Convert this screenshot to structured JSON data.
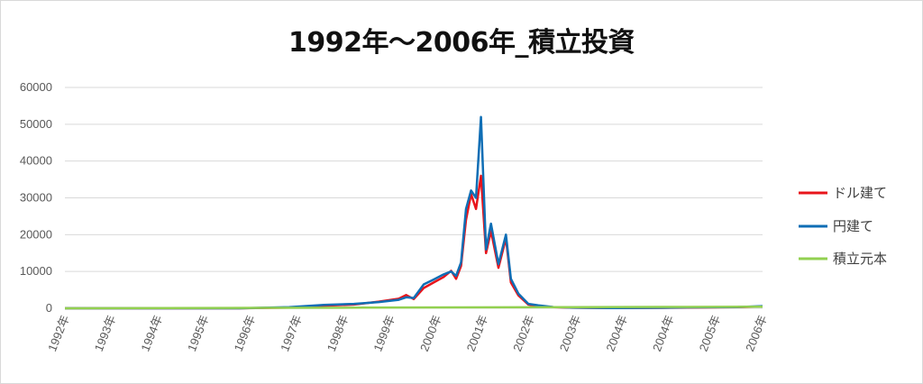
{
  "chart_data": {
    "type": "line",
    "title": "1992年～2006年_積立投資",
    "xlabel": "",
    "ylabel": "",
    "ylim": [
      0,
      60000
    ],
    "y_ticks": [
      "0",
      "10000",
      "20000",
      "30000",
      "40000",
      "50000",
      "60000"
    ],
    "x_ticks": [
      "1992年",
      "1993年",
      "1994年",
      "1995年",
      "1996年",
      "1997年",
      "1998年",
      "1999年",
      "2000年",
      "2001年",
      "2002年",
      "2003年",
      "2004年",
      "2004年",
      "2005年",
      "2006年"
    ],
    "grid": true,
    "legend_position": "right",
    "series": [
      {
        "name": "ドル建て",
        "color": "#e8141b",
        "x": [
          1992.0,
          1995.5,
          1996.5,
          1997.2,
          1997.8,
          1998.3,
          1998.7,
          1998.85,
          1999.0,
          1999.2,
          1999.4,
          1999.6,
          1999.75,
          1999.85,
          1999.95,
          2000.05,
          2000.15,
          2000.25,
          2000.35,
          2000.45,
          2000.55,
          2000.7,
          2000.85,
          2000.95,
          2001.1,
          2001.3,
          2001.5,
          2001.8,
          2002.2,
          2003.0,
          2004.0,
          2004.5,
          2005.5,
          2006.0
        ],
        "values": [
          0,
          0,
          200,
          700,
          1000,
          1800,
          2600,
          3600,
          2500,
          5500,
          7000,
          8500,
          10200,
          8000,
          11500,
          24000,
          31000,
          27000,
          36000,
          15000,
          21000,
          11000,
          19000,
          7000,
          3500,
          1000,
          600,
          300,
          150,
          50,
          120,
          200,
          300,
          500
        ]
      },
      {
        "name": "円建て",
        "color": "#0f6eb5",
        "x": [
          1992.0,
          1995.5,
          1996.5,
          1997.2,
          1997.8,
          1998.3,
          1998.7,
          1998.85,
          1999.0,
          1999.2,
          1999.4,
          1999.6,
          1999.75,
          1999.85,
          1999.95,
          2000.05,
          2000.15,
          2000.25,
          2000.35,
          2000.45,
          2000.55,
          2000.7,
          2000.85,
          2000.95,
          2001.1,
          2001.3,
          2001.5,
          2001.8,
          2002.2,
          2003.0,
          2004.0,
          2004.5,
          2005.5,
          2006.0
        ],
        "values": [
          0,
          0,
          300,
          900,
          1200,
          1700,
          2300,
          3000,
          2800,
          6500,
          7800,
          9200,
          10000,
          8800,
          12500,
          27000,
          32000,
          30000,
          52000,
          16000,
          23000,
          12000,
          20000,
          8000,
          4000,
          1200,
          800,
          350,
          200,
          80,
          150,
          250,
          350,
          600
        ]
      },
      {
        "name": "積立元本",
        "color": "#92d050",
        "x": [
          1992.0,
          1994.0,
          1996.0,
          1998.0,
          2000.0,
          2002.0,
          2004.0,
          2006.0
        ],
        "values": [
          10,
          60,
          120,
          180,
          240,
          300,
          360,
          420
        ]
      }
    ]
  }
}
